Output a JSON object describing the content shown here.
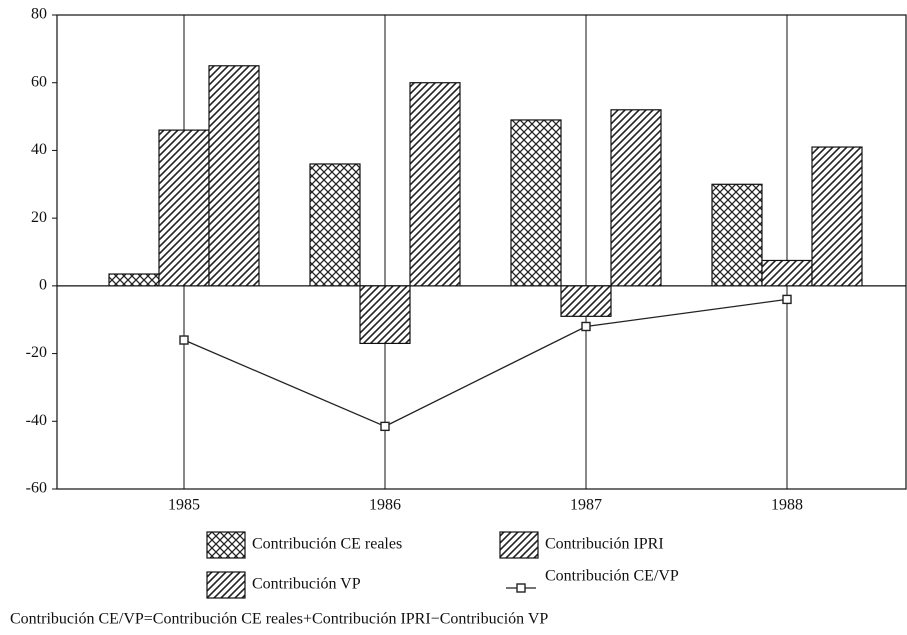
{
  "chart_data": {
    "type": "bar",
    "categories": [
      "1985",
      "1986",
      "1987",
      "1988"
    ],
    "series": [
      {
        "name": "Contribución CE reales",
        "type": "bar",
        "pattern": "crosshatch",
        "color": "#222",
        "values": [
          3.5,
          36,
          49,
          30
        ]
      },
      {
        "name": "Contribución IPRI",
        "type": "bar",
        "pattern": "diagonal",
        "color": "#222",
        "values": [
          46,
          -17,
          -9,
          7.5
        ]
      },
      {
        "name": "Contribución VP",
        "type": "bar",
        "pattern": "diagonal",
        "color": "#222",
        "values": [
          65,
          60,
          52,
          41
        ]
      },
      {
        "name": "Contribución CE/VP",
        "type": "line",
        "color": "#222",
        "values": [
          -16,
          -41.5,
          -12,
          -4
        ]
      }
    ],
    "ylim": [
      -60,
      80
    ],
    "yticks": [
      -60,
      -40,
      -20,
      0,
      20,
      40,
      60,
      80
    ],
    "grid": true,
    "note": "Contribución CE/VP=Contribución CE reales+Contribución IPRI−Contribución VP"
  }
}
